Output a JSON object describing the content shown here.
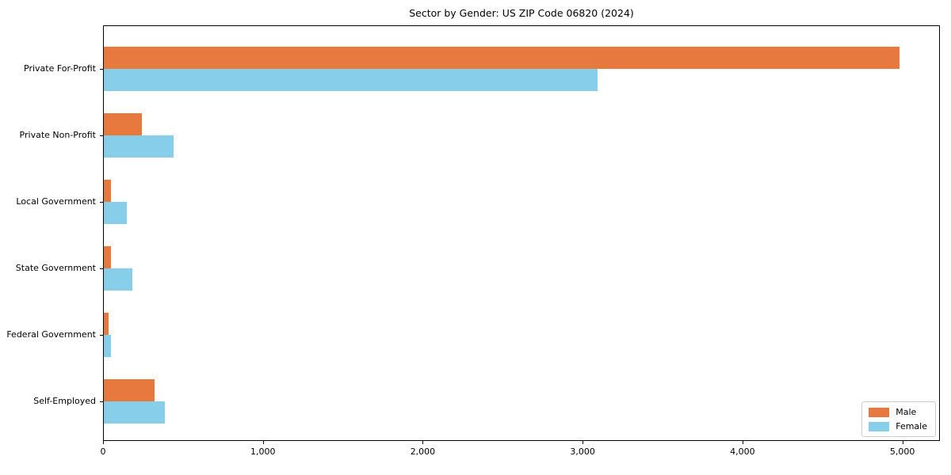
{
  "title": "Sector by Gender: US ZIP Code 06820 (2024)",
  "chart_data": {
    "type": "bar",
    "orientation": "horizontal",
    "title": "Sector by Gender: US ZIP Code 06820 (2024)",
    "categories": [
      "Private For-Profit",
      "Private Non-Profit",
      "Local Government",
      "State Government",
      "Federal Government",
      "Self-Employed"
    ],
    "series": [
      {
        "name": "Male",
        "color": "#e8793e",
        "values": [
          4975,
          240,
          45,
          45,
          30,
          315
        ]
      },
      {
        "name": "Female",
        "color": "#87ceeb",
        "values": [
          3090,
          435,
          145,
          180,
          45,
          380
        ]
      }
    ],
    "xlabel": "",
    "ylabel": "",
    "xlim": [
      0,
      5225
    ],
    "x_ticks": [
      0,
      1000,
      2000,
      3000,
      4000,
      5000
    ],
    "x_tick_labels": [
      "0",
      "1,000",
      "2,000",
      "3,000",
      "4,000",
      "5,000"
    ],
    "grid": false,
    "legend_position": "lower right",
    "frame_color": "#000000",
    "background_color": "#ffffff"
  }
}
